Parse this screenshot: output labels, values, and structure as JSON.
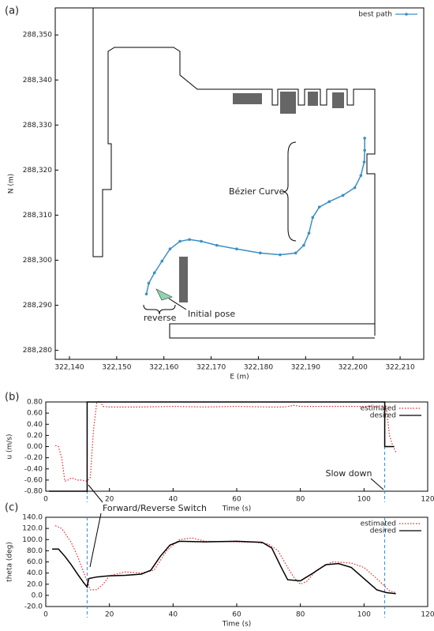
{
  "chart_data": [
    {
      "type": "line",
      "panel": "(a)",
      "xlabel": "E (m)",
      "ylabel": "N (m)",
      "xlim": [
        322137,
        322215
      ],
      "ylim": [
        288278,
        288356
      ],
      "xticks": [
        {
          "value": 322140,
          "label": "322,140"
        },
        {
          "value": 322150,
          "label": "322,150"
        },
        {
          "value": 322160,
          "label": "322,160"
        },
        {
          "value": 322170,
          "label": "322,170"
        },
        {
          "value": 322180,
          "label": "322,180"
        },
        {
          "value": 322190,
          "label": "322,190"
        },
        {
          "value": 322200,
          "label": "322,200"
        },
        {
          "value": 322210,
          "label": "322,210"
        }
      ],
      "yticks": [
        {
          "value": 288280,
          "label": "288,280"
        },
        {
          "value": 288290,
          "label": "288,290"
        },
        {
          "value": 288300,
          "label": "288,300"
        },
        {
          "value": 288310,
          "label": "288,310"
        },
        {
          "value": 288320,
          "label": "288,320"
        },
        {
          "value": 288330,
          "label": "288,330"
        },
        {
          "value": 288340,
          "label": "288,340"
        },
        {
          "value": 288350,
          "label": "288,350"
        }
      ],
      "legend": "top-right",
      "series": [
        {
          "name": "best path",
          "color": "#3b8fc4",
          "marker": true,
          "style": "solid",
          "x": [
            322156.3,
            322156.8,
            322158.0,
            322159.6,
            322161.3,
            322163.4,
            322165.4,
            322167.9,
            322171.2,
            322175.4,
            322180.4,
            322184.6,
            322187.9,
            322189.6,
            322190.7,
            322191.5,
            322192.9,
            322195.0,
            322197.9,
            322200.4,
            322201.7,
            322202.4,
            322202.5,
            322202.5
          ],
          "values": [
            288292.5,
            288294.9,
            288297.2,
            288299.8,
            288302.5,
            288304.2,
            288304.6,
            288304.2,
            288303.3,
            288302.5,
            288301.6,
            288301.2,
            288301.6,
            288303.3,
            288306.0,
            288309.5,
            288311.8,
            288313.0,
            288314.4,
            288316.1,
            288318.8,
            288321.8,
            288324.4,
            288327.1
          ]
        }
      ],
      "annotations": [
        "Bézier Curve",
        "reverse",
        "Initial pose"
      ]
    },
    {
      "type": "line",
      "panel": "(b)",
      "xlabel": "Time (s)",
      "ylabel": "u (m/s)",
      "xlim": [
        0,
        120
      ],
      "ylim": [
        -0.8,
        0.8
      ],
      "xticks": [
        0,
        20,
        40,
        60,
        80,
        100,
        120
      ],
      "yticks": [
        {
          "value": -0.8,
          "label": "-0.80"
        },
        {
          "value": -0.6,
          "label": "-0.60"
        },
        {
          "value": -0.4,
          "label": "-0.40"
        },
        {
          "value": -0.2,
          "label": "-0.20"
        },
        {
          "value": 0,
          "label": "0.00"
        },
        {
          "value": 0.2,
          "label": "0.20"
        },
        {
          "value": 0.4,
          "label": "0.40"
        },
        {
          "value": 0.6,
          "label": "0.60"
        },
        {
          "value": 0.8,
          "label": "0.80"
        }
      ],
      "legend": "top-right",
      "vlines": [
        13,
        106.5
      ],
      "vline_color": "#2a8fd6",
      "series": [
        {
          "name": "estimated",
          "color": "#e8262a",
          "style": "dotted",
          "x": [
            3,
            4,
            5,
            6,
            7,
            8,
            9,
            10,
            11,
            12,
            13,
            14,
            15,
            16,
            17,
            18,
            20,
            30,
            40,
            50,
            60,
            70,
            75,
            78,
            80,
            90,
            100,
            105,
            106,
            107,
            108,
            109,
            110
          ],
          "values": [
            0.02,
            0.0,
            -0.2,
            -0.62,
            -0.6,
            -0.56,
            -0.58,
            -0.6,
            -0.6,
            -0.61,
            -0.62,
            -0.55,
            0.3,
            0.78,
            0.82,
            0.72,
            0.71,
            0.71,
            0.72,
            0.71,
            0.72,
            0.71,
            0.71,
            0.74,
            0.72,
            0.72,
            0.72,
            0.73,
            0.73,
            0.7,
            0.2,
            0.02,
            -0.1
          ]
        },
        {
          "name": "desired",
          "color": "#000000",
          "style": "solid",
          "x": [
            1,
            13,
            13,
            106.5,
            106.5,
            109.5
          ],
          "values": [
            -0.8,
            -0.8,
            0.8,
            0.8,
            0.0,
            0.0
          ]
        }
      ],
      "annotations": [
        "Slow down",
        "Forward/Reverse Switch"
      ]
    },
    {
      "type": "line",
      "panel": "(c)",
      "xlabel": "Time (s)",
      "ylabel": "theta (deg)",
      "xlim": [
        0,
        120
      ],
      "ylim": [
        -20,
        140
      ],
      "xticks": [
        0,
        20,
        40,
        60,
        80,
        100,
        120
      ],
      "yticks": [
        {
          "value": -20,
          "label": "-20.0"
        },
        {
          "value": 0,
          "label": "0.0"
        },
        {
          "value": 20,
          "label": "20.0"
        },
        {
          "value": 40,
          "label": "40.0"
        },
        {
          "value": 60,
          "label": "60.0"
        },
        {
          "value": 80,
          "label": "80.0"
        },
        {
          "value": 100,
          "label": "100.0"
        },
        {
          "value": 120,
          "label": "120.0"
        },
        {
          "value": 140,
          "label": "140.0"
        }
      ],
      "legend": "top-right",
      "vlines": [
        13,
        106.5
      ],
      "vline_color": "#2a8fd6",
      "series": [
        {
          "name": "estimated",
          "color": "#e8262a",
          "style": "dotted",
          "x": [
            3,
            5,
            8,
            10,
            12,
            14,
            16,
            18,
            20,
            25,
            30,
            34,
            38,
            42,
            46,
            50,
            60,
            66,
            70,
            73,
            76,
            78,
            80,
            82,
            85,
            90,
            96,
            100,
            104,
            108,
            110
          ],
          "values": [
            125,
            120,
            95,
            70,
            40,
            10,
            10,
            20,
            35,
            42,
            40,
            45,
            80,
            100,
            103,
            97,
            96,
            95,
            92,
            80,
            50,
            32,
            20,
            25,
            45,
            60,
            58,
            50,
            30,
            8,
            5
          ]
        },
        {
          "name": "desired",
          "color": "#000000",
          "style": "solid",
          "x": [
            2,
            4,
            6,
            8,
            10,
            12,
            13,
            13.5,
            16,
            20,
            25,
            30,
            33,
            36,
            39,
            42,
            50,
            60,
            68,
            71,
            74,
            76,
            80,
            84,
            88,
            92,
            96,
            100,
            104,
            107,
            110
          ],
          "values": [
            83,
            83,
            70,
            55,
            38,
            22,
            15,
            30,
            33,
            35,
            36,
            38,
            45,
            70,
            90,
            97,
            96,
            97,
            95,
            85,
            50,
            28,
            26,
            40,
            55,
            57,
            50,
            30,
            10,
            5,
            3
          ]
        }
      ],
      "annotations": []
    }
  ]
}
